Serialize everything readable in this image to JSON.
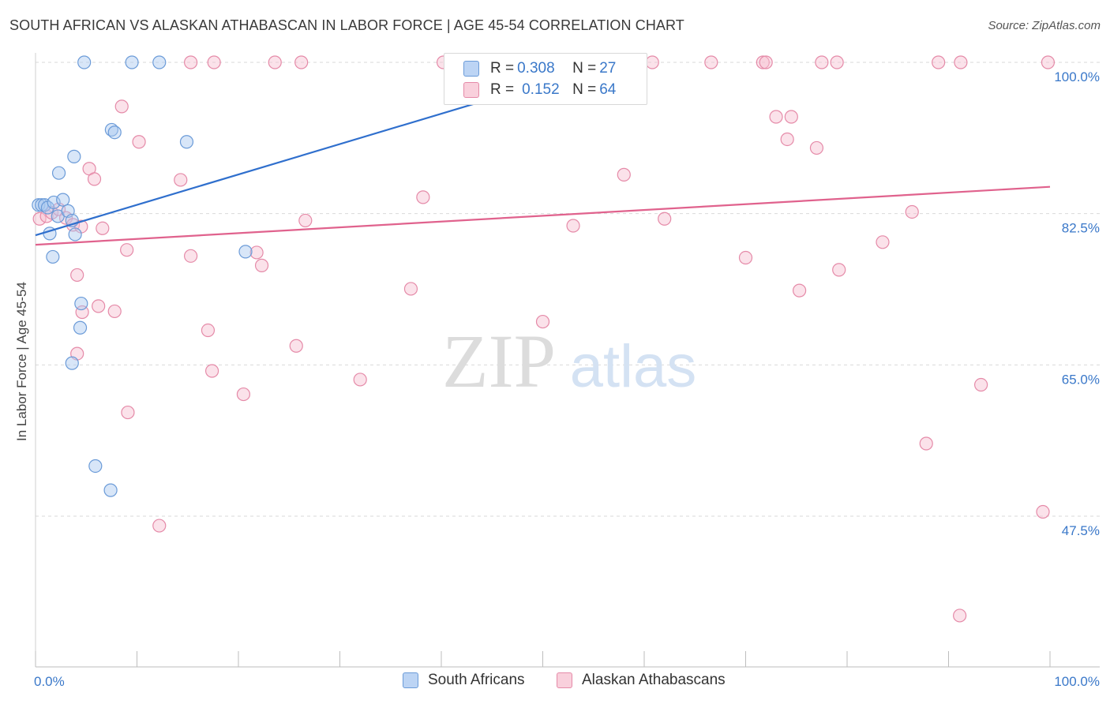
{
  "title": "SOUTH AFRICAN VS ALASKAN ATHABASCAN IN LABOR FORCE | AGE 45-54 CORRELATION CHART",
  "source": "Source: ZipAtlas.com",
  "watermark": {
    "zip": "ZIP",
    "atlas": "atlas"
  },
  "colors": {
    "blue_fill": "#a9c8f0",
    "blue_stroke": "#6b9bd8",
    "blue_line": "#2f6fcd",
    "pink_fill": "#f6bfd0",
    "pink_stroke": "#e58aa8",
    "pink_line": "#e0628d",
    "tick_label": "#3a78c9",
    "grid": "#d9d9d9"
  },
  "legend": {
    "rows": [
      {
        "r_label": "R =",
        "r_value": "0.308",
        "n_label": "N =",
        "n_value": "27",
        "color": "blue"
      },
      {
        "r_label": "R =",
        "r_value": "0.152",
        "n_label": "N =",
        "n_value": "64",
        "color": "pink"
      }
    ]
  },
  "chart_data": {
    "type": "scatter",
    "xlabel": "",
    "ylabel": "In Labor Force | Age 45-54",
    "xlim": [
      0,
      100
    ],
    "ylim": [
      32.5,
      103
    ],
    "x_tick_labels": [
      "0.0%",
      "100.0%"
    ],
    "y_ticks": [
      47.5,
      65.0,
      82.5,
      100.0
    ],
    "y_tick_labels": [
      "47.5%",
      "65.0%",
      "82.5%",
      "100.0%"
    ],
    "grid": true,
    "legend_position": "top-center",
    "series": [
      {
        "name": "South Africans",
        "color": "blue",
        "points": [
          [
            0.3,
            83.5
          ],
          [
            0.6,
            83.5
          ],
          [
            0.9,
            83.5
          ],
          [
            1.2,
            83.2
          ],
          [
            1.8,
            83.8
          ],
          [
            2.2,
            82.2
          ],
          [
            1.4,
            80.2
          ],
          [
            2.7,
            84.1
          ],
          [
            3.2,
            82.8
          ],
          [
            3.6,
            81.7
          ],
          [
            3.9,
            80.1
          ],
          [
            1.7,
            77.5
          ],
          [
            2.3,
            87.2
          ],
          [
            3.8,
            89.1
          ],
          [
            7.5,
            92.2
          ],
          [
            7.8,
            91.9
          ],
          [
            14.9,
            90.8
          ],
          [
            4.5,
            72.1
          ],
          [
            4.4,
            69.3
          ],
          [
            3.6,
            65.2
          ],
          [
            5.9,
            53.3
          ],
          [
            7.4,
            50.5
          ],
          [
            4.8,
            100.0
          ],
          [
            9.5,
            100.0
          ],
          [
            12.2,
            100.0
          ],
          [
            20.7,
            78.1
          ],
          [
            56.9,
            100.0
          ]
        ],
        "trend": {
          "x": [
            0,
            56.9
          ],
          "y": [
            80.0,
            100.0
          ]
        }
      },
      {
        "name": "Alaskan Athabascans",
        "color": "pink",
        "points": [
          [
            0.4,
            81.9
          ],
          [
            1.1,
            82.2
          ],
          [
            1.6,
            82.6
          ],
          [
            2.3,
            83.0
          ],
          [
            3.0,
            82.0
          ],
          [
            3.7,
            81.2
          ],
          [
            4.5,
            81.0
          ],
          [
            5.3,
            87.7
          ],
          [
            5.8,
            86.5
          ],
          [
            6.6,
            80.8
          ],
          [
            8.5,
            94.9
          ],
          [
            9.0,
            78.3
          ],
          [
            10.2,
            90.8
          ],
          [
            14.3,
            86.4
          ],
          [
            15.3,
            77.6
          ],
          [
            4.1,
            75.4
          ],
          [
            4.6,
            71.1
          ],
          [
            6.2,
            71.8
          ],
          [
            7.8,
            71.2
          ],
          [
            17.0,
            69.0
          ],
          [
            4.1,
            66.3
          ],
          [
            17.4,
            64.3
          ],
          [
            9.1,
            59.5
          ],
          [
            20.5,
            61.6
          ],
          [
            12.2,
            46.4
          ],
          [
            21.8,
            78.0
          ],
          [
            22.3,
            76.5
          ],
          [
            25.7,
            67.2
          ],
          [
            26.6,
            81.7
          ],
          [
            32.0,
            63.3
          ],
          [
            37.0,
            73.8
          ],
          [
            38.2,
            84.4
          ],
          [
            50.0,
            70.0
          ],
          [
            53.0,
            81.1
          ],
          [
            58.0,
            87.0
          ],
          [
            62.0,
            81.9
          ],
          [
            70.0,
            77.4
          ],
          [
            73.0,
            93.7
          ],
          [
            74.1,
            91.1
          ],
          [
            74.5,
            93.7
          ],
          [
            75.3,
            73.6
          ],
          [
            77.0,
            90.1
          ],
          [
            79.2,
            76.0
          ],
          [
            83.5,
            79.2
          ],
          [
            86.4,
            82.7
          ],
          [
            87.8,
            55.9
          ],
          [
            91.1,
            36.0
          ],
          [
            93.2,
            62.7
          ],
          [
            99.3,
            48.0
          ],
          [
            15.3,
            100.0
          ],
          [
            17.6,
            100.0
          ],
          [
            23.6,
            100.0
          ],
          [
            26.2,
            100.0
          ],
          [
            40.2,
            100.0
          ],
          [
            44.8,
            100.0
          ],
          [
            60.8,
            100.0
          ],
          [
            66.6,
            100.0
          ],
          [
            71.7,
            100.0
          ],
          [
            72.0,
            100.0
          ],
          [
            77.5,
            100.0
          ],
          [
            79.0,
            100.0
          ],
          [
            89.0,
            100.0
          ],
          [
            91.2,
            100.0
          ],
          [
            99.8,
            100.0
          ]
        ],
        "trend": {
          "x": [
            0,
            100
          ],
          "y": [
            78.9,
            85.6
          ]
        }
      }
    ]
  }
}
